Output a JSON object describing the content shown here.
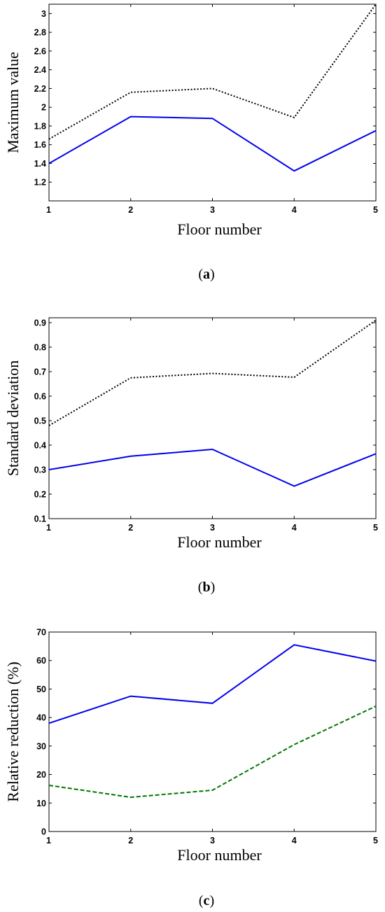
{
  "chart_data": [
    {
      "type": "line",
      "caption": "(a)",
      "caption_letter": "a",
      "xlabel": "Floor number",
      "ylabel": "Maximum value",
      "x": [
        1,
        2,
        3,
        4,
        5
      ],
      "xlim": [
        1,
        5
      ],
      "ylim": [
        1.0,
        3.1
      ],
      "xticks": [
        "1",
        "2",
        "3",
        "4",
        "5"
      ],
      "yticks": [
        "1.2",
        "1.4",
        "1.6",
        "1.8",
        "2",
        "2.2",
        "2.4",
        "2.6",
        "2.8",
        "3"
      ],
      "ytick_values": [
        1.2,
        1.4,
        1.6,
        1.8,
        2.0,
        2.2,
        2.4,
        2.6,
        2.8,
        3.0
      ],
      "grid": false,
      "series": [
        {
          "values": [
            1.66,
            2.16,
            2.2,
            1.89,
            3.1
          ],
          "color": "#000000",
          "style": "dotted"
        },
        {
          "values": [
            1.4,
            1.9,
            1.88,
            1.32,
            1.75
          ],
          "color": "#0000ee",
          "style": "solid"
        }
      ]
    },
    {
      "type": "line",
      "caption": "(b)",
      "caption_letter": "b",
      "xlabel": "Floor number",
      "ylabel": "Standard deviation",
      "x": [
        1,
        2,
        3,
        4,
        5
      ],
      "xlim": [
        1,
        5
      ],
      "ylim": [
        0.1,
        0.92
      ],
      "xticks": [
        "1",
        "2",
        "3",
        "4",
        "5"
      ],
      "yticks": [
        "0.1",
        "0.2",
        "0.3",
        "0.4",
        "0.5",
        "0.6",
        "0.7",
        "0.8",
        "0.9"
      ],
      "ytick_values": [
        0.1,
        0.2,
        0.3,
        0.4,
        0.5,
        0.6,
        0.7,
        0.8,
        0.9
      ],
      "grid": false,
      "series": [
        {
          "values": [
            0.48,
            0.675,
            0.693,
            0.677,
            0.91
          ],
          "color": "#000000",
          "style": "dotted"
        },
        {
          "values": [
            0.3,
            0.355,
            0.383,
            0.233,
            0.365
          ],
          "color": "#0000ee",
          "style": "solid"
        }
      ]
    },
    {
      "type": "line",
      "caption": "(c)",
      "caption_letter": "c",
      "xlabel": "Floor number",
      "ylabel": "Relative reduction (%)",
      "x": [
        1,
        2,
        3,
        4,
        5
      ],
      "xlim": [
        1,
        5
      ],
      "ylim": [
        0,
        70
      ],
      "xticks": [
        "1",
        "2",
        "3",
        "4",
        "5"
      ],
      "yticks": [
        "0",
        "10",
        "20",
        "30",
        "40",
        "50",
        "60",
        "70"
      ],
      "ytick_values": [
        0,
        10,
        20,
        30,
        40,
        50,
        60,
        70
      ],
      "grid": false,
      "series": [
        {
          "values": [
            38,
            47.5,
            45,
            65.5,
            59.8
          ],
          "color": "#0000ee",
          "style": "solid"
        },
        {
          "values": [
            16.2,
            12,
            14.5,
            30.5,
            44
          ],
          "color": "#007700",
          "style": "dashed"
        }
      ]
    }
  ]
}
